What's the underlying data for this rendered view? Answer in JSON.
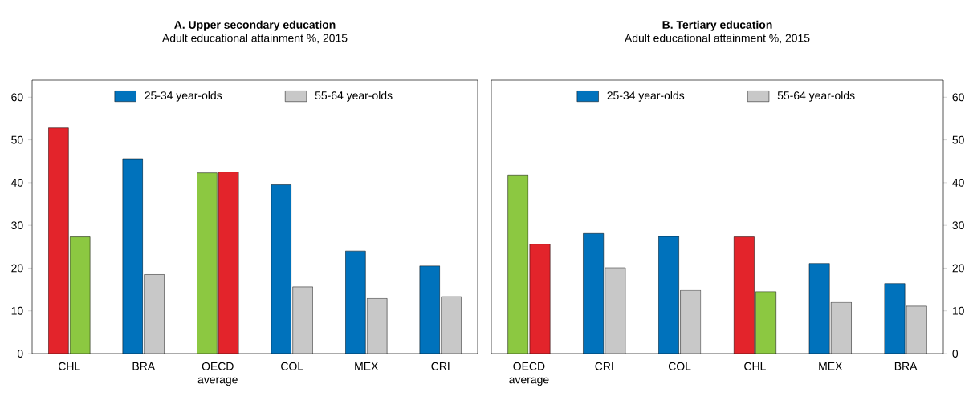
{
  "chart_data": [
    {
      "type": "bar",
      "title": "A. Upper secondary education",
      "subtitle": "Adult educational attainment %, 2015",
      "categories": [
        "CHL",
        "BRA",
        "OECD average",
        "COL",
        "MEX",
        "CRI"
      ],
      "series": [
        {
          "name": "25-34 year-olds",
          "color": "#0072bc",
          "colors": [
            "#e3242b",
            "#0072bc",
            "#8cc841",
            "#0072bc",
            "#0072bc",
            "#0072bc"
          ],
          "values": [
            52.8,
            45.6,
            42.3,
            39.5,
            24.0,
            20.5
          ]
        },
        {
          "name": "55-64 year-olds",
          "color": "#c8c8c8",
          "colors": [
            "#8cc841",
            "#c8c8c8",
            "#e3242b",
            "#c8c8c8",
            "#c8c8c8",
            "#c8c8c8"
          ],
          "values": [
            27.3,
            18.5,
            42.5,
            15.6,
            12.9,
            13.3
          ]
        }
      ],
      "ylim": [
        0,
        64
      ],
      "yticks": [
        0,
        10,
        20,
        30,
        40,
        50,
        60
      ],
      "legend": "top"
    },
    {
      "type": "bar",
      "title": "B. Tertiary education",
      "subtitle": "Adult educational attainment %, 2015",
      "categories": [
        "OECD average",
        "CRI",
        "COL",
        "CHL",
        "MEX",
        "BRA"
      ],
      "series": [
        {
          "name": "25-34 year-olds",
          "color": "#0072bc",
          "colors": [
            "#8cc841",
            "#0072bc",
            "#0072bc",
            "#e3242b",
            "#0072bc",
            "#0072bc"
          ],
          "values": [
            41.8,
            28.1,
            27.4,
            27.3,
            21.1,
            16.4
          ]
        },
        {
          "name": "55-64 year-olds",
          "color": "#c8c8c8",
          "colors": [
            "#e3242b",
            "#c8c8c8",
            "#c8c8c8",
            "#8cc841",
            "#c8c8c8",
            "#c8c8c8"
          ],
          "values": [
            25.6,
            20.1,
            14.8,
            14.5,
            12.0,
            11.1
          ]
        }
      ],
      "ylim": [
        0,
        64
      ],
      "yticks": [
        0,
        10,
        20,
        30,
        40,
        50,
        60
      ],
      "legend": "top"
    }
  ]
}
